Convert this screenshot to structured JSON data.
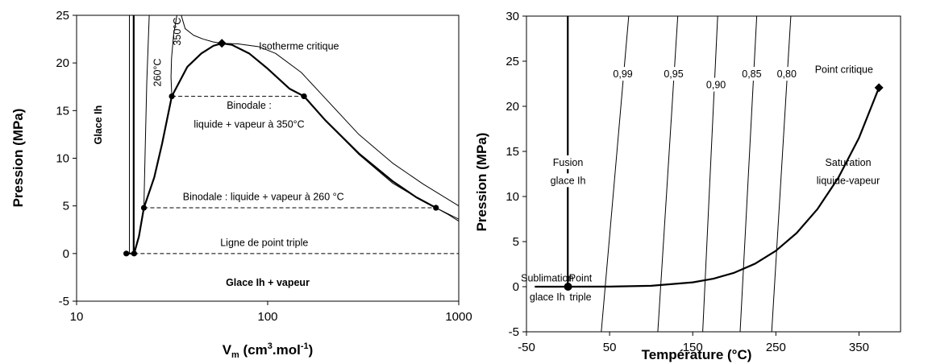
{
  "chart_data": [
    {
      "type": "line",
      "xlabel_main": "V",
      "xlabel_sub": "m",
      "xlabel_rest1": " (cm",
      "xlabel_sup1": "3",
      "xlabel_rest2": ".mol",
      "xlabel_sup2": "-1",
      "xlabel_rest3": ")",
      "ylabel": "Pression (MPa)",
      "xscale": "log",
      "xlim": [
        10,
        1000
      ],
      "ylim": [
        -5,
        25
      ],
      "xticks": [
        10,
        100,
        1000
      ],
      "xtick_labels": [
        "10",
        "100",
        "1000"
      ],
      "yticks": [
        -5,
        0,
        5,
        10,
        15,
        20,
        25
      ],
      "ytick_labels": [
        "-5",
        "0",
        "5",
        "10",
        "15",
        "20",
        "25"
      ],
      "series": [
        {
          "style": "thin",
          "x": [
            18.9,
            18.9
          ],
          "y": [
            0,
            25
          ]
        },
        {
          "style": "thick",
          "x": [
            19.9,
            19.9
          ],
          "y": [
            0,
            25
          ]
        },
        {
          "style": "thick",
          "x": [
            18.2,
            20.0,
            21.2,
            22.5,
            25.5,
            28.0,
            31.5,
            38,
            45,
            52,
            57.6,
            65,
            80,
            100,
            130,
            155,
            200,
            300,
            450,
            600,
            760
          ],
          "y": [
            0,
            0,
            1.8,
            4.8,
            8.0,
            11.5,
            16.5,
            19.6,
            21.0,
            21.8,
            22.06,
            21.9,
            21.0,
            19.4,
            17.3,
            16.5,
            14.0,
            10.5,
            7.6,
            5.9,
            4.8
          ]
        },
        {
          "style": "thin",
          "x": [
            22.5,
            22.8,
            23.3,
            24.0
          ],
          "y": [
            4.8,
            10,
            18,
            25
          ]
        },
        {
          "style": "thin",
          "x": [
            31.5,
            31.2,
            31.4,
            32.2,
            33.5
          ],
          "y": [
            16.5,
            18.5,
            20.5,
            23,
            25
          ]
        },
        {
          "style": "thin",
          "x": [
            35.3,
            37,
            41,
            46,
            52,
            57.6
          ],
          "y": [
            25,
            23.6,
            22.9,
            22.5,
            22.2,
            22.06
          ]
        },
        {
          "style": "thin",
          "x": [
            57.6,
            70,
            90,
            110,
            150,
            200,
            300,
            450,
            650,
            1000
          ],
          "y": [
            22.06,
            22.0,
            21.7,
            21.0,
            19.0,
            16.3,
            12.5,
            9.5,
            7.3,
            5.0
          ]
        },
        {
          "style": "thin",
          "x": [
            155,
            200,
            300,
            450,
            600,
            760,
            1000
          ],
          "y": [
            16.5,
            14.0,
            10.4,
            7.4,
            5.9,
            4.8,
            3.6
          ]
        },
        {
          "style": "thin",
          "x": [
            760,
            880,
            1000
          ],
          "y": [
            4.8,
            4.1,
            3.4
          ]
        },
        {
          "style": "dashed",
          "x": [
            20,
            1000
          ],
          "y": [
            0,
            0
          ]
        },
        {
          "style": "dashed",
          "x": [
            31.5,
            155
          ],
          "y": [
            16.5,
            16.5
          ]
        },
        {
          "style": "dashed",
          "x": [
            22.5,
            760
          ],
          "y": [
            4.8,
            4.8
          ]
        }
      ],
      "points": [
        {
          "marker": "circle",
          "x": 18.2,
          "y": 0
        },
        {
          "marker": "circle",
          "x": 20.0,
          "y": 0
        },
        {
          "marker": "circle",
          "x": 22.5,
          "y": 4.8
        },
        {
          "marker": "circle",
          "x": 31.5,
          "y": 16.5
        },
        {
          "marker": "circle",
          "x": 155,
          "y": 16.5
        },
        {
          "marker": "circle",
          "x": 760,
          "y": 4.8
        },
        {
          "marker": "diamond",
          "x": 57.6,
          "y": 22.06
        }
      ],
      "annotations": [
        {
          "text": "Glace Ih",
          "bold": true,
          "x": 13.5,
          "y": 13.5,
          "rotate": -90,
          "anchor": "middle"
        },
        {
          "text": "260°C",
          "bold": false,
          "x": 27.6,
          "y": 19.0,
          "rotate": -90,
          "anchor": "middle"
        },
        {
          "text": "350°C",
          "bold": false,
          "x": 35.0,
          "y": 23.3,
          "rotate": -90,
          "anchor": "middle"
        },
        {
          "text": "Isotherme critique",
          "bold": false,
          "x": 90,
          "y": 21.4,
          "rotate": 0,
          "anchor": "start"
        },
        {
          "text": "Binodale :",
          "bold": false,
          "x": 80,
          "y": 15.2,
          "rotate": 0,
          "anchor": "middle"
        },
        {
          "text": "liquide + vapeur à 350°C",
          "bold": false,
          "x": 80,
          "y": 13.2,
          "rotate": 0,
          "anchor": "middle"
        },
        {
          "text": "Binodale : liquide + vapeur à 260 °C",
          "bold": false,
          "x": 95,
          "y": 5.6,
          "rotate": 0,
          "anchor": "middle"
        },
        {
          "text": "Ligne de point triple",
          "bold": false,
          "x": 96,
          "y": 0.8,
          "rotate": 0,
          "anchor": "middle"
        },
        {
          "text": "Glace Ih + vapeur",
          "bold": true,
          "x": 100,
          "y": -3.4,
          "rotate": 0,
          "anchor": "middle"
        }
      ]
    },
    {
      "type": "line",
      "xlabel": "Température (°C)",
      "ylabel": "Pression (MPa)",
      "xscale": "linear",
      "xlim": [
        -50,
        400
      ],
      "ylim": [
        -5,
        30
      ],
      "xticks": [
        -50,
        50,
        150,
        250,
        350
      ],
      "xtick_labels": [
        "-50",
        "50",
        "150",
        "250",
        "350"
      ],
      "yticks": [
        -5,
        0,
        5,
        10,
        15,
        20,
        25,
        30
      ],
      "ytick_labels": [
        "-5",
        "0",
        "5",
        "10",
        "15",
        "20",
        "25",
        "30"
      ],
      "series": [
        {
          "style": "thick",
          "x": [
            -0.3,
            -0.3
          ],
          "y": [
            0,
            30
          ]
        },
        {
          "style": "thick",
          "x": [
            -40,
            0.01
          ],
          "y": [
            0,
            0
          ]
        },
        {
          "style": "thick",
          "x": [
            0.01,
            50,
            100,
            150,
            175,
            200,
            225,
            250,
            275,
            300,
            325,
            350,
            374
          ],
          "y": [
            0,
            0.01,
            0.1,
            0.48,
            0.89,
            1.55,
            2.55,
            3.98,
            5.95,
            8.6,
            12.05,
            16.5,
            22.06
          ]
        },
        {
          "style": "thin",
          "label": "0,99",
          "x": [
            40,
            73
          ],
          "y": [
            -5,
            30
          ]
        },
        {
          "style": "thin",
          "label": "0,95",
          "x": [
            108,
            132
          ],
          "y": [
            -5,
            30
          ]
        },
        {
          "style": "thin",
          "label": "0,90",
          "x": [
            162,
            180
          ],
          "y": [
            -5,
            30
          ]
        },
        {
          "style": "thin",
          "label": "0,85",
          "x": [
            207,
            227
          ],
          "y": [
            -5,
            30
          ]
        },
        {
          "style": "thin",
          "label": "0,80",
          "x": [
            245,
            268
          ],
          "y": [
            -5,
            30
          ]
        }
      ],
      "points": [
        {
          "marker": "circle",
          "x": 0.01,
          "y": 0
        },
        {
          "marker": "diamond",
          "x": 374,
          "y": 22.06
        }
      ],
      "annotations": [
        {
          "text": "0,99",
          "x": 66,
          "y": 23.2,
          "anchor": "middle",
          "box": true
        },
        {
          "text": "0,95",
          "x": 127,
          "y": 23.2,
          "anchor": "middle",
          "box": true
        },
        {
          "text": "0,90",
          "x": 178,
          "y": 22.0,
          "anchor": "middle",
          "box": true
        },
        {
          "text": "0,85",
          "x": 221,
          "y": 23.2,
          "anchor": "middle",
          "box": true
        },
        {
          "text": "0,80",
          "x": 263,
          "y": 23.2,
          "anchor": "middle",
          "box": true
        },
        {
          "text": "Point critique",
          "x": 367,
          "y": 23.7,
          "anchor": "end",
          "box": false
        },
        {
          "text": "Fusion",
          "x": 0,
          "y": 13.4,
          "anchor": "middle",
          "box": true
        },
        {
          "text": "glace Ih",
          "x": 0,
          "y": 11.4,
          "anchor": "middle",
          "box": true
        },
        {
          "text": "Saturation",
          "x": 337,
          "y": 13.4,
          "anchor": "middle",
          "box": false
        },
        {
          "text": "liquide-vapeur",
          "x": 337,
          "y": 11.4,
          "anchor": "middle",
          "box": false
        },
        {
          "text": "Sublimation",
          "x": -25,
          "y": 0.6,
          "anchor": "middle",
          "box": false
        },
        {
          "text": "glace Ih",
          "x": -25,
          "y": -1.5,
          "anchor": "middle",
          "box": false
        },
        {
          "text": "Point",
          "x": 15,
          "y": 0.6,
          "anchor": "middle",
          "box": false
        },
        {
          "text": "triple",
          "x": 15,
          "y": -1.5,
          "anchor": "middle",
          "box": false
        }
      ]
    }
  ]
}
